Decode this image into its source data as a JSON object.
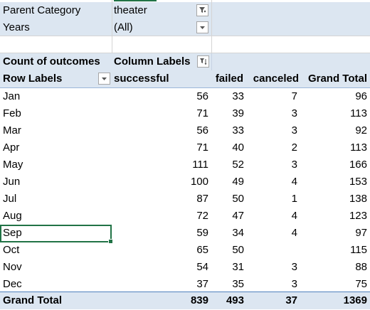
{
  "filters": [
    {
      "label": "Parent Category",
      "value": "theater",
      "button_icon": "filter-applied-icon"
    },
    {
      "label": "Years",
      "value": "(All)",
      "button_icon": "dropdown-arrow-icon"
    }
  ],
  "pivot": {
    "value_field": "Count of outcomes",
    "column_labels": "Column Labels",
    "row_labels": "Row Labels",
    "columns": [
      "successful",
      "failed",
      "canceled",
      "Grand Total"
    ],
    "rows": [
      {
        "label": "Jan",
        "successful": "56",
        "failed": "33",
        "canceled": "7",
        "total": "96"
      },
      {
        "label": "Feb",
        "successful": "71",
        "failed": "39",
        "canceled": "3",
        "total": "113"
      },
      {
        "label": "Mar",
        "successful": "56",
        "failed": "33",
        "canceled": "3",
        "total": "92"
      },
      {
        "label": "Apr",
        "successful": "71",
        "failed": "40",
        "canceled": "2",
        "total": "113"
      },
      {
        "label": "May",
        "successful": "111",
        "failed": "52",
        "canceled": "3",
        "total": "166"
      },
      {
        "label": "Jun",
        "successful": "100",
        "failed": "49",
        "canceled": "4",
        "total": "153"
      },
      {
        "label": "Jul",
        "successful": "87",
        "failed": "50",
        "canceled": "1",
        "total": "138"
      },
      {
        "label": "Aug",
        "successful": "72",
        "failed": "47",
        "canceled": "4",
        "total": "123"
      },
      {
        "label": "Sep",
        "successful": "59",
        "failed": "34",
        "canceled": "4",
        "total": "97"
      },
      {
        "label": "Oct",
        "successful": "65",
        "failed": "50",
        "canceled": "",
        "total": "115"
      },
      {
        "label": "Nov",
        "successful": "54",
        "failed": "31",
        "canceled": "3",
        "total": "88"
      },
      {
        "label": "Dec",
        "successful": "37",
        "failed": "35",
        "canceled": "3",
        "total": "75"
      }
    ],
    "grand_total": {
      "label": "Grand Total",
      "successful": "839",
      "failed": "493",
      "canceled": "37",
      "total": "1369"
    }
  },
  "selected_cell": "Sep",
  "colors": {
    "band": "#dce6f1",
    "selection": "#217346",
    "grid": "#d4d4d4"
  }
}
